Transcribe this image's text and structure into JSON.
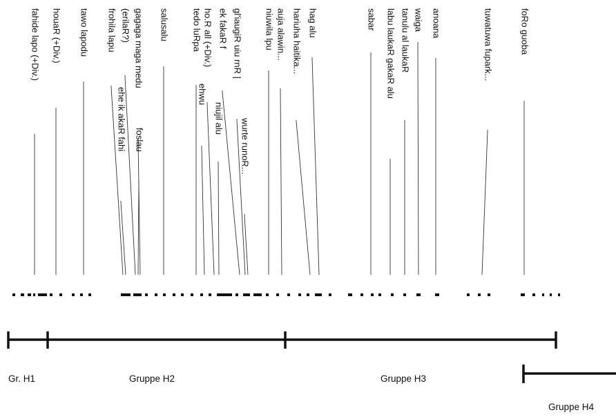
{
  "labels": [
    {
      "text": "fahide lapo (+Div.)"
    },
    {
      "text": "houaR (+Div.)"
    },
    {
      "text": "tawo lapodu"
    },
    {
      "text": "frohila lapu"
    },
    {
      "text": "(erilaR?)"
    },
    {
      "text": "gagaga maga medu"
    },
    {
      "text": "ehe ik akaR fahi"
    },
    {
      "text": "foslau"
    },
    {
      "text": "salusalu"
    },
    {
      "text": "tedo luRpa"
    },
    {
      "text": "ho.R all (+Div.)"
    },
    {
      "text": "ehwu"
    },
    {
      "text": "niujil alu"
    },
    {
      "text": "ek fakaR f"
    },
    {
      "text": "gl'iaugiR uiu rnR |"
    },
    {
      "text": "wurte runoR..."
    },
    {
      "text": "niuwila lpu"
    },
    {
      "text": "auja alawin..."
    },
    {
      "text": "hariuha haitika..."
    },
    {
      "text": "hag alu"
    },
    {
      "text": "sabar"
    },
    {
      "text": "labu laukaR gakaR alu"
    },
    {
      "text": "tanulu al laukaR"
    },
    {
      "text": "waiga"
    },
    {
      "text": "anoana"
    },
    {
      "text": "tuwatuwa fupark..."
    },
    {
      "text": "foRo guoba"
    }
  ],
  "groups": [
    {
      "label": "Gr. H1"
    },
    {
      "label": "Gruppe H2"
    },
    {
      "label": "Gruppe H3"
    },
    {
      "label": "Gruppe H4"
    }
  ]
}
